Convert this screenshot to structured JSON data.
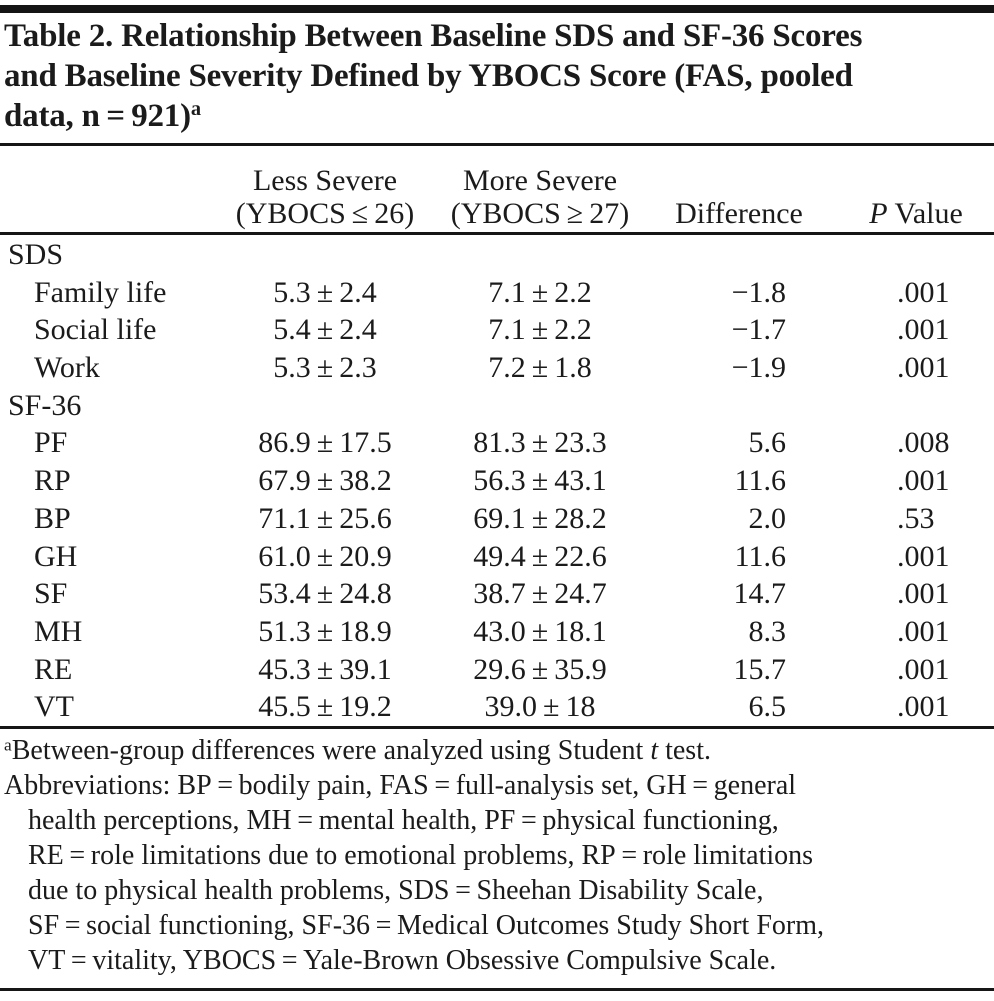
{
  "table": {
    "title": {
      "line1": "Table 2. Relationship Between Baseline SDS and SF-36 Scores",
      "line2": "and Baseline Severity Defined by YBOCS Score (FAS, pooled",
      "line3": "data, n = 921)",
      "superscript": "a"
    },
    "header": {
      "less_severe_line1": "Less Severe",
      "less_severe_line2": "(YBOCS ≤ 26)",
      "more_severe_line1": "More Severe",
      "more_severe_line2": "(YBOCS ≥ 27)",
      "difference": "Difference",
      "p_italic": "P",
      "p_rest": " Value"
    },
    "rows": [
      {
        "label": "SDS",
        "type": "section",
        "less": "",
        "more": "",
        "diff": "",
        "p": ""
      },
      {
        "label": "Family life",
        "type": "item",
        "less": "5.3 ± 2.4",
        "more": "7.1 ± 2.2",
        "diff": "−1.8",
        "p": ".001"
      },
      {
        "label": "Social life",
        "type": "item",
        "less": "5.4 ± 2.4",
        "more": "7.1 ± 2.2",
        "diff": "−1.7",
        "p": ".001"
      },
      {
        "label": "Work",
        "type": "item",
        "less": "5.3 ± 2.3",
        "more": "7.2 ± 1.8",
        "diff": "−1.9",
        "p": ".001"
      },
      {
        "label": "SF-36",
        "type": "section",
        "less": "",
        "more": "",
        "diff": "",
        "p": ""
      },
      {
        "label": "PF",
        "type": "item",
        "less": "86.9 ± 17.5",
        "more": "81.3 ± 23.3",
        "diff": "5.6",
        "p": ".008"
      },
      {
        "label": "RP",
        "type": "item",
        "less": "67.9 ± 38.2",
        "more": "56.3 ± 43.1",
        "diff": "11.6",
        "p": ".001"
      },
      {
        "label": "BP",
        "type": "item",
        "less": "71.1 ± 25.6",
        "more": "69.1 ± 28.2",
        "diff": "2.0",
        "p": ".53"
      },
      {
        "label": "GH",
        "type": "item",
        "less": "61.0 ± 20.9",
        "more": "49.4 ± 22.6",
        "diff": "11.6",
        "p": ".001"
      },
      {
        "label": "SF",
        "type": "item",
        "less": "53.4 ± 24.8",
        "more": "38.7 ± 24.7",
        "diff": "14.7",
        "p": ".001"
      },
      {
        "label": "MH",
        "type": "item",
        "less": "51.3 ± 18.9",
        "more": "43.0 ± 18.1",
        "diff": "8.3",
        "p": ".001"
      },
      {
        "label": "RE",
        "type": "item",
        "less": "45.3 ± 39.1",
        "more": "29.6 ± 35.9",
        "diff": "15.7",
        "p": ".001"
      },
      {
        "label": "VT",
        "type": "item",
        "less": "45.5 ± 19.2",
        "more": "39.0 ± 18",
        "diff": "6.5",
        "p": ".001"
      }
    ],
    "footnotes": {
      "note_a": {
        "superscript": "a",
        "pre": "Between-group differences were analyzed using Student ",
        "italic": "t",
        "post": " test."
      },
      "abbreviations": {
        "line1": "Abbreviations: BP = bodily pain, FAS = full-analysis set, GH = general",
        "line2": "health perceptions, MH = mental health, PF = physical functioning,",
        "line3": "RE = role limitations due to emotional problems, RP = role limitations",
        "line4": "due to physical health problems, SDS = Sheehan Disability Scale,",
        "line5": "SF = social functioning, SF-36 = Medical Outcomes Study Short Form,",
        "line6": "VT = vitality, YBOCS = Yale-Brown Obsessive Compulsive Scale."
      }
    }
  }
}
